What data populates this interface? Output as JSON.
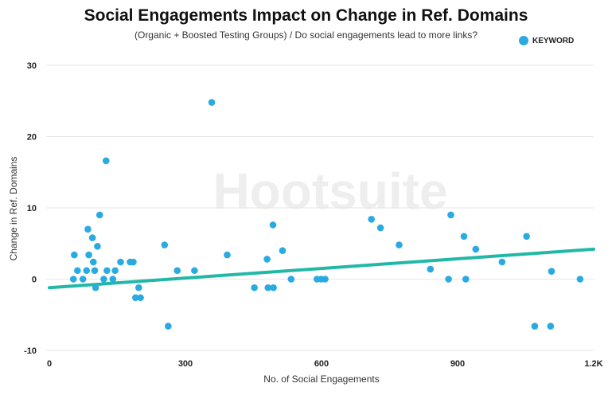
{
  "header": {
    "title": "Social Engagements Impact on Change in Ref. Domains",
    "subtitle": "(Organic + Boosted Testing Groups) / Do social engagements lead to more links?"
  },
  "legend": {
    "label": "KEYWORD",
    "color": "#29abe2"
  },
  "watermark": {
    "text": "Hootsuite"
  },
  "colors": {
    "points": "#29abe2",
    "trend": "#22b8a7",
    "grid": "#e6e6e6"
  },
  "chart_data": {
    "type": "scatter",
    "title": "Social Engagements Impact on Change in Ref. Domains",
    "subtitle": "(Organic + Boosted Testing Groups) / Do social engagements lead to more links?",
    "xlabel": "No. of Social Engagements",
    "ylabel": "Change in Ref. Domains",
    "xlim": [
      0,
      1200
    ],
    "ylim": [
      -10,
      30
    ],
    "x_ticks": [
      0,
      300,
      600,
      900,
      1200
    ],
    "x_tick_labels": [
      "0",
      "300",
      "600",
      "900",
      "1.2K"
    ],
    "y_ticks": [
      -10,
      0,
      10,
      20,
      30
    ],
    "y_tick_labels": [
      "-10",
      "0",
      "10",
      "20",
      "30"
    ],
    "grid": "horizontal",
    "legend_position": "top-right",
    "series": [
      {
        "name": "KEYWORD",
        "points": [
          [
            53,
            0
          ],
          [
            55,
            3.4
          ],
          [
            62,
            1.2
          ],
          [
            74,
            0
          ],
          [
            82,
            1.2
          ],
          [
            85,
            7
          ],
          [
            87,
            3.4
          ],
          [
            95,
            5.8
          ],
          [
            97,
            2.4
          ],
          [
            100,
            1.2
          ],
          [
            102,
            -1.2
          ],
          [
            106,
            4.6
          ],
          [
            111,
            9
          ],
          [
            120,
            0
          ],
          [
            125,
            16.6
          ],
          [
            127,
            1.2
          ],
          [
            140,
            0
          ],
          [
            145,
            1.2
          ],
          [
            157,
            2.4
          ],
          [
            178,
            2.4
          ],
          [
            185,
            2.4
          ],
          [
            190,
            -2.6
          ],
          [
            197,
            -1.2
          ],
          [
            201,
            -2.6
          ],
          [
            254,
            4.8
          ],
          [
            262,
            -6.6
          ],
          [
            282,
            1.2
          ],
          [
            320,
            1.2
          ],
          [
            358,
            24.8
          ],
          [
            392,
            3.4
          ],
          [
            452,
            -1.2
          ],
          [
            480,
            2.8
          ],
          [
            482,
            -1.2
          ],
          [
            493,
            7.6
          ],
          [
            494,
            -1.2
          ],
          [
            514,
            4
          ],
          [
            533,
            0
          ],
          [
            590,
            0
          ],
          [
            599,
            0
          ],
          [
            608,
            0
          ],
          [
            710,
            8.4
          ],
          [
            730,
            7.2
          ],
          [
            771,
            4.8
          ],
          [
            840,
            1.4
          ],
          [
            880,
            0
          ],
          [
            885,
            9
          ],
          [
            914,
            6
          ],
          [
            918,
            0
          ],
          [
            940,
            4.2
          ],
          [
            998,
            2.4
          ],
          [
            1052,
            6
          ],
          [
            1070,
            -6.6
          ],
          [
            1105,
            -6.6
          ],
          [
            1107,
            1.1
          ],
          [
            1170,
            0
          ]
        ]
      }
    ],
    "trendline": {
      "x": [
        0,
        1200
      ],
      "y": [
        -1.2,
        4.2
      ]
    }
  }
}
